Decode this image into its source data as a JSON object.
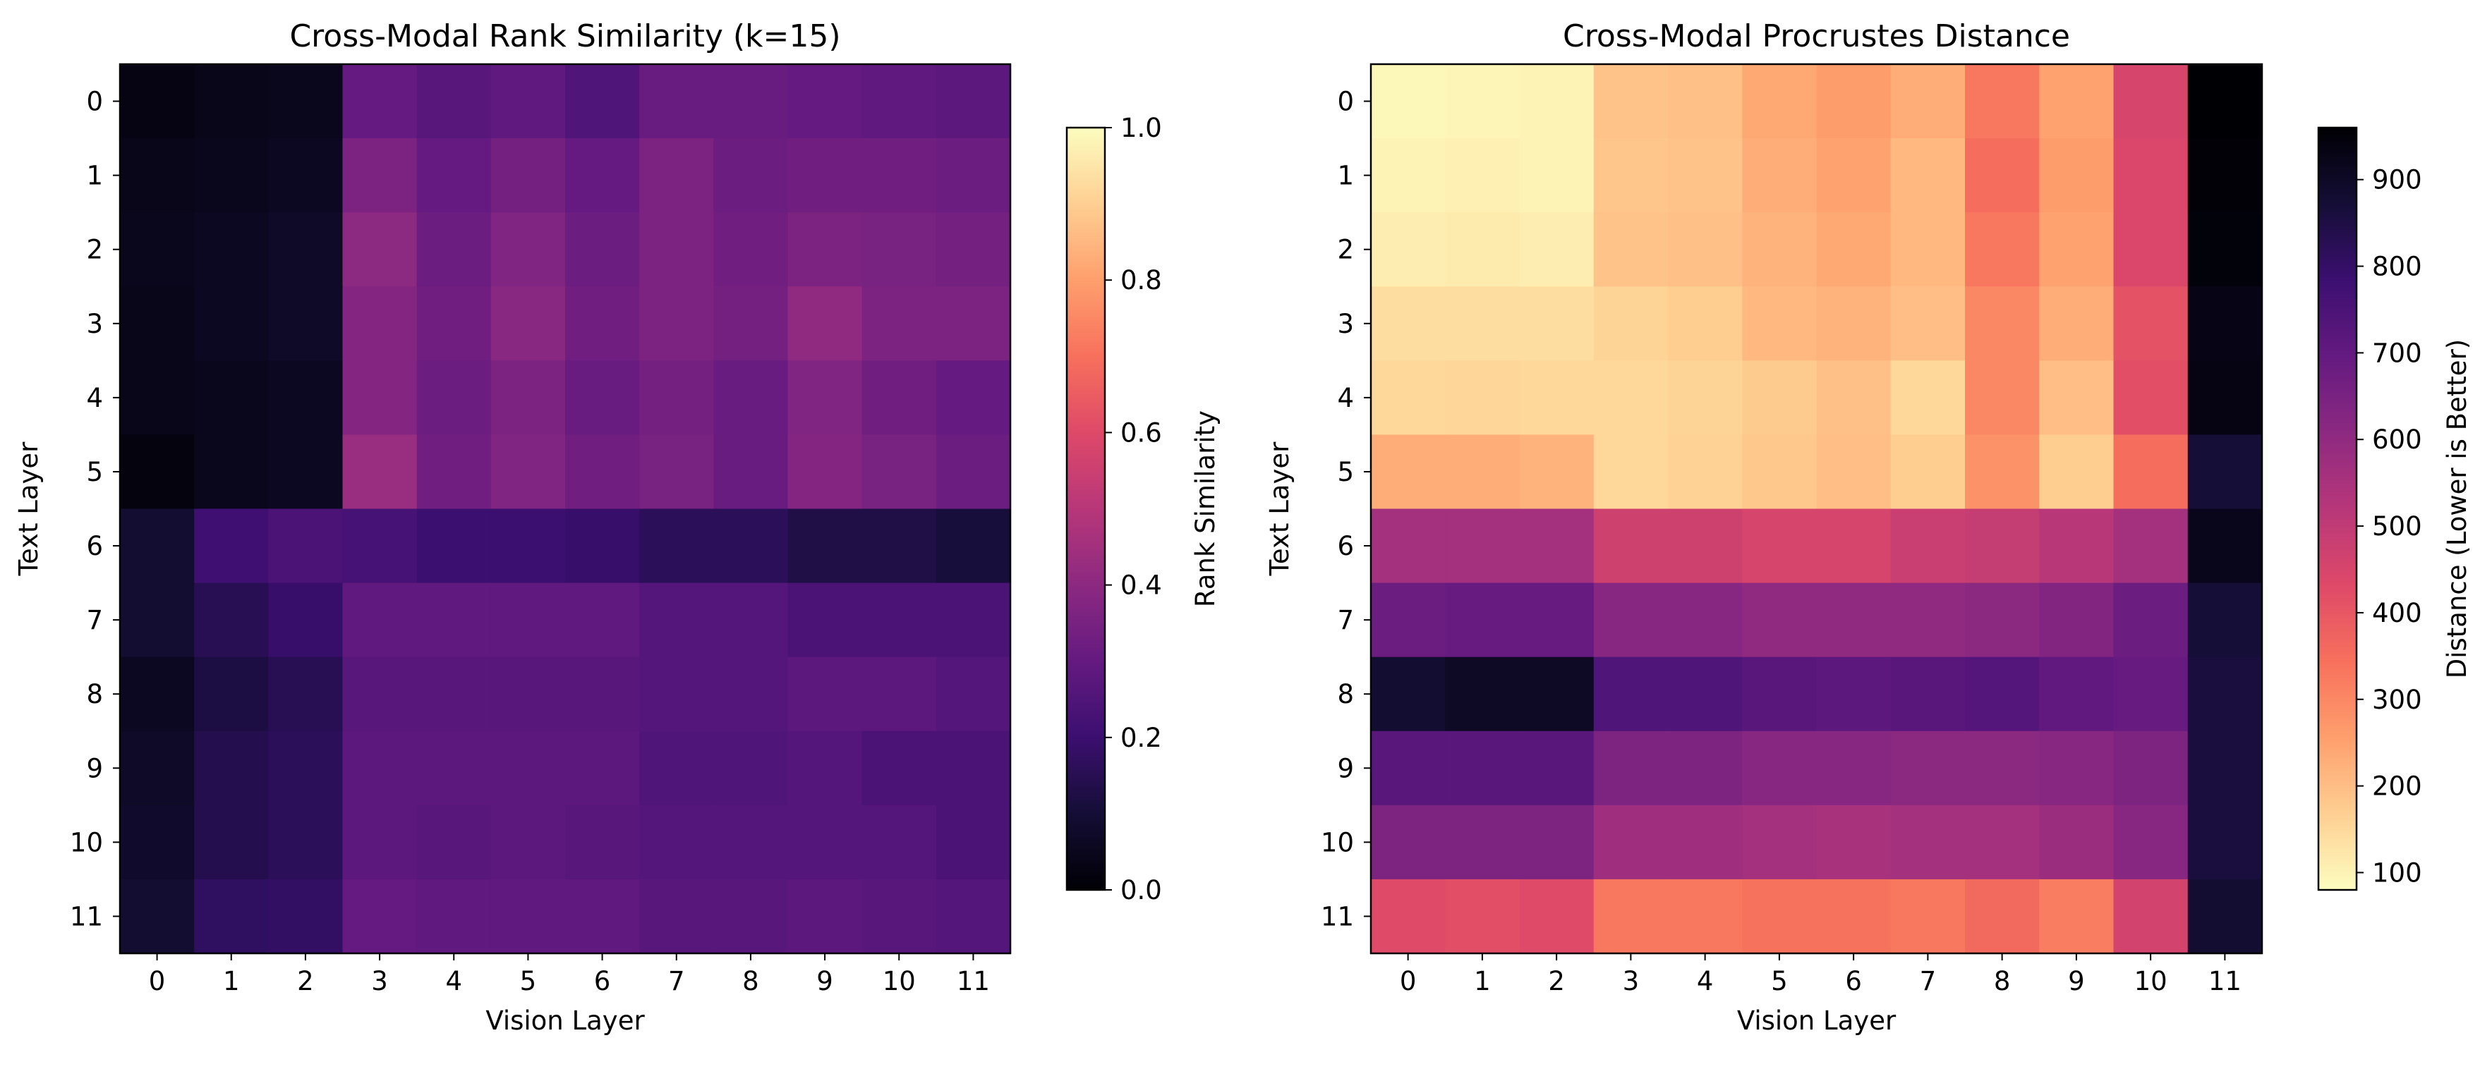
{
  "colormap_stops": [
    "#000004",
    "#140e36",
    "#3b0f70",
    "#641a80",
    "#8c2981",
    "#b73779",
    "#de4968",
    "#f7705c",
    "#fe9f6d",
    "#fecf92",
    "#fcfdbf"
  ],
  "chart_data": [
    {
      "type": "heatmap",
      "title": "Cross-Modal Rank Similarity (k=15)",
      "xlabel": "Vision Layer",
      "ylabel": "Text Layer",
      "x_ticks": [
        "0",
        "1",
        "2",
        "3",
        "4",
        "5",
        "6",
        "7",
        "8",
        "9",
        "10",
        "11"
      ],
      "y_ticks": [
        "0",
        "1",
        "2",
        "3",
        "4",
        "5",
        "6",
        "7",
        "8",
        "9",
        "10",
        "11"
      ],
      "colormap": "magma",
      "colorbar_label": "Rank Similarity",
      "colorbar_ticks": [
        "0.0",
        "0.2",
        "0.4",
        "0.6",
        "0.8",
        "1.0"
      ],
      "vmin": 0.0,
      "vmax": 1.0,
      "values": [
        [
          0.03,
          0.04,
          0.05,
          0.3,
          0.27,
          0.29,
          0.25,
          0.31,
          0.31,
          0.3,
          0.29,
          0.28
        ],
        [
          0.04,
          0.05,
          0.06,
          0.36,
          0.3,
          0.34,
          0.3,
          0.36,
          0.32,
          0.33,
          0.33,
          0.32
        ],
        [
          0.05,
          0.06,
          0.07,
          0.4,
          0.32,
          0.37,
          0.32,
          0.36,
          0.33,
          0.36,
          0.35,
          0.34
        ],
        [
          0.04,
          0.06,
          0.07,
          0.38,
          0.33,
          0.39,
          0.33,
          0.36,
          0.34,
          0.41,
          0.36,
          0.36
        ],
        [
          0.04,
          0.05,
          0.06,
          0.38,
          0.32,
          0.36,
          0.31,
          0.34,
          0.31,
          0.37,
          0.33,
          0.3
        ],
        [
          0.02,
          0.05,
          0.06,
          0.43,
          0.33,
          0.37,
          0.33,
          0.35,
          0.31,
          0.38,
          0.35,
          0.32
        ],
        [
          0.09,
          0.21,
          0.24,
          0.23,
          0.2,
          0.2,
          0.19,
          0.16,
          0.16,
          0.13,
          0.13,
          0.11
        ],
        [
          0.09,
          0.15,
          0.19,
          0.29,
          0.29,
          0.29,
          0.29,
          0.26,
          0.26,
          0.24,
          0.24,
          0.24
        ],
        [
          0.06,
          0.12,
          0.15,
          0.27,
          0.27,
          0.27,
          0.27,
          0.26,
          0.26,
          0.28,
          0.28,
          0.26
        ],
        [
          0.07,
          0.14,
          0.16,
          0.28,
          0.28,
          0.28,
          0.28,
          0.25,
          0.25,
          0.26,
          0.24,
          0.24
        ],
        [
          0.08,
          0.14,
          0.16,
          0.28,
          0.27,
          0.28,
          0.27,
          0.26,
          0.26,
          0.26,
          0.26,
          0.24
        ],
        [
          0.09,
          0.17,
          0.18,
          0.3,
          0.29,
          0.29,
          0.29,
          0.27,
          0.27,
          0.28,
          0.27,
          0.26
        ]
      ]
    },
    {
      "type": "heatmap",
      "title": "Cross-Modal Procrustes Distance",
      "xlabel": "Vision Layer",
      "ylabel": "Text Layer",
      "x_ticks": [
        "0",
        "1",
        "2",
        "3",
        "4",
        "5",
        "6",
        "7",
        "8",
        "9",
        "10",
        "11"
      ],
      "y_ticks": [
        "0",
        "1",
        "2",
        "3",
        "4",
        "5",
        "6",
        "7",
        "8",
        "9",
        "10",
        "11"
      ],
      "colormap": "magma_r",
      "colorbar_label": "Distance (Lower is Better)",
      "colorbar_ticks": [
        "100",
        "200",
        "300",
        "400",
        "500",
        "600",
        "700",
        "800",
        "900"
      ],
      "vmin": 80,
      "vmax": 960,
      "values": [
        [
          90,
          95,
          100,
          190,
          195,
          240,
          260,
          230,
          330,
          250,
          450,
          960
        ],
        [
          100,
          105,
          100,
          185,
          190,
          230,
          250,
          210,
          350,
          260,
          440,
          955
        ],
        [
          110,
          115,
          110,
          190,
          195,
          220,
          240,
          210,
          330,
          250,
          440,
          950
        ],
        [
          140,
          140,
          140,
          160,
          170,
          210,
          220,
          200,
          300,
          230,
          410,
          930
        ],
        [
          150,
          155,
          150,
          150,
          160,
          175,
          195,
          150,
          300,
          200,
          420,
          935
        ],
        [
          230,
          230,
          220,
          150,
          165,
          180,
          200,
          170,
          280,
          170,
          350,
          870
        ],
        [
          560,
          560,
          560,
          470,
          470,
          450,
          450,
          480,
          490,
          520,
          560,
          920
        ],
        [
          680,
          690,
          690,
          620,
          620,
          600,
          600,
          600,
          610,
          630,
          680,
          870
        ],
        [
          880,
          900,
          900,
          740,
          740,
          720,
          710,
          720,
          730,
          700,
          690,
          860
        ],
        [
          720,
          720,
          720,
          640,
          640,
          620,
          620,
          610,
          610,
          620,
          640,
          860
        ],
        [
          640,
          640,
          640,
          570,
          570,
          560,
          550,
          560,
          560,
          580,
          620,
          860
        ],
        [
          430,
          420,
          430,
          330,
          330,
          340,
          340,
          330,
          360,
          320,
          460,
          880
        ]
      ]
    }
  ]
}
